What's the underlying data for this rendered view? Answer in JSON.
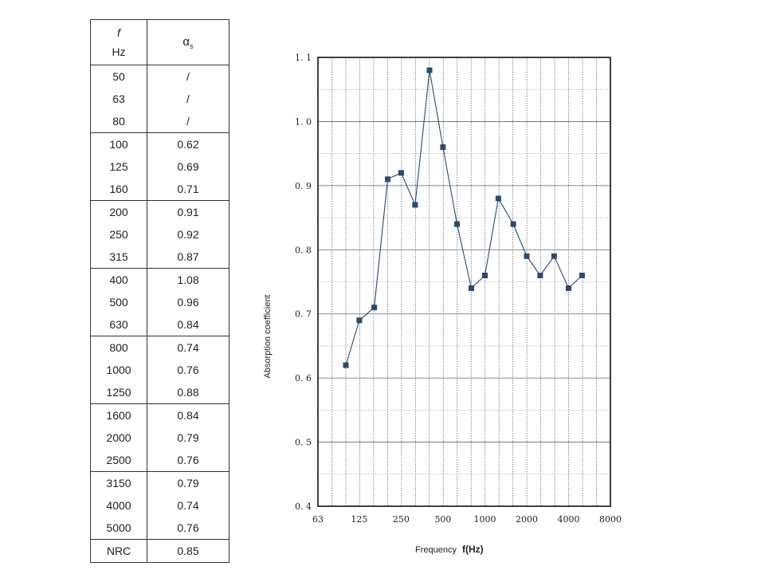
{
  "table": {
    "header": {
      "f_label": "f",
      "hz_label": "Hz",
      "alpha_symbol": "α",
      "alpha_subscript": "s"
    },
    "groups": [
      [
        [
          "50",
          "/"
        ],
        [
          "63",
          "/"
        ],
        [
          "80",
          "/"
        ]
      ],
      [
        [
          "100",
          "0.62"
        ],
        [
          "125",
          "0.69"
        ],
        [
          "160",
          "0.71"
        ]
      ],
      [
        [
          "200",
          "0.91"
        ],
        [
          "250",
          "0.92"
        ],
        [
          "315",
          "0.87"
        ]
      ],
      [
        [
          "400",
          "1.08"
        ],
        [
          "500",
          "0.96"
        ],
        [
          "630",
          "0.84"
        ]
      ],
      [
        [
          "800",
          "0.74"
        ],
        [
          "1000",
          "0.76"
        ],
        [
          "1250",
          "0.88"
        ]
      ],
      [
        [
          "1600",
          "0.84"
        ],
        [
          "2000",
          "0.79"
        ],
        [
          "2500",
          "0.76"
        ]
      ],
      [
        [
          "3150",
          "0.79"
        ],
        [
          "4000",
          "0.74"
        ],
        [
          "5000",
          "0.76"
        ]
      ]
    ],
    "nrc": {
      "label": "NRC",
      "value": "0.85"
    }
  },
  "chart_data": {
    "type": "line",
    "xlabel": "Frequency",
    "xlabel_unit": "f(Hz)",
    "ylabel": "Absorption coefficient",
    "x_scale": "log (third-octave bands)",
    "ylim": [
      0.4,
      1.1
    ],
    "y_ticks": [
      "0. 4",
      "0. 5",
      "0. 6",
      "0. 7",
      "0. 8",
      "0. 9",
      "1. 0",
      "1. 1"
    ],
    "x_ticks": [
      "63",
      "125",
      "250",
      "500",
      "1000",
      "2000",
      "4000",
      "8000"
    ],
    "grid": true,
    "marker": "square",
    "color": "#2b4a6f",
    "x": [
      100,
      125,
      160,
      200,
      250,
      315,
      400,
      500,
      630,
      800,
      1000,
      1250,
      1600,
      2000,
      2500,
      3150,
      4000,
      5000
    ],
    "values": [
      0.62,
      0.69,
      0.71,
      0.91,
      0.92,
      0.87,
      1.08,
      0.96,
      0.84,
      0.74,
      0.76,
      0.88,
      0.84,
      0.79,
      0.76,
      0.79,
      0.74,
      0.76
    ]
  }
}
